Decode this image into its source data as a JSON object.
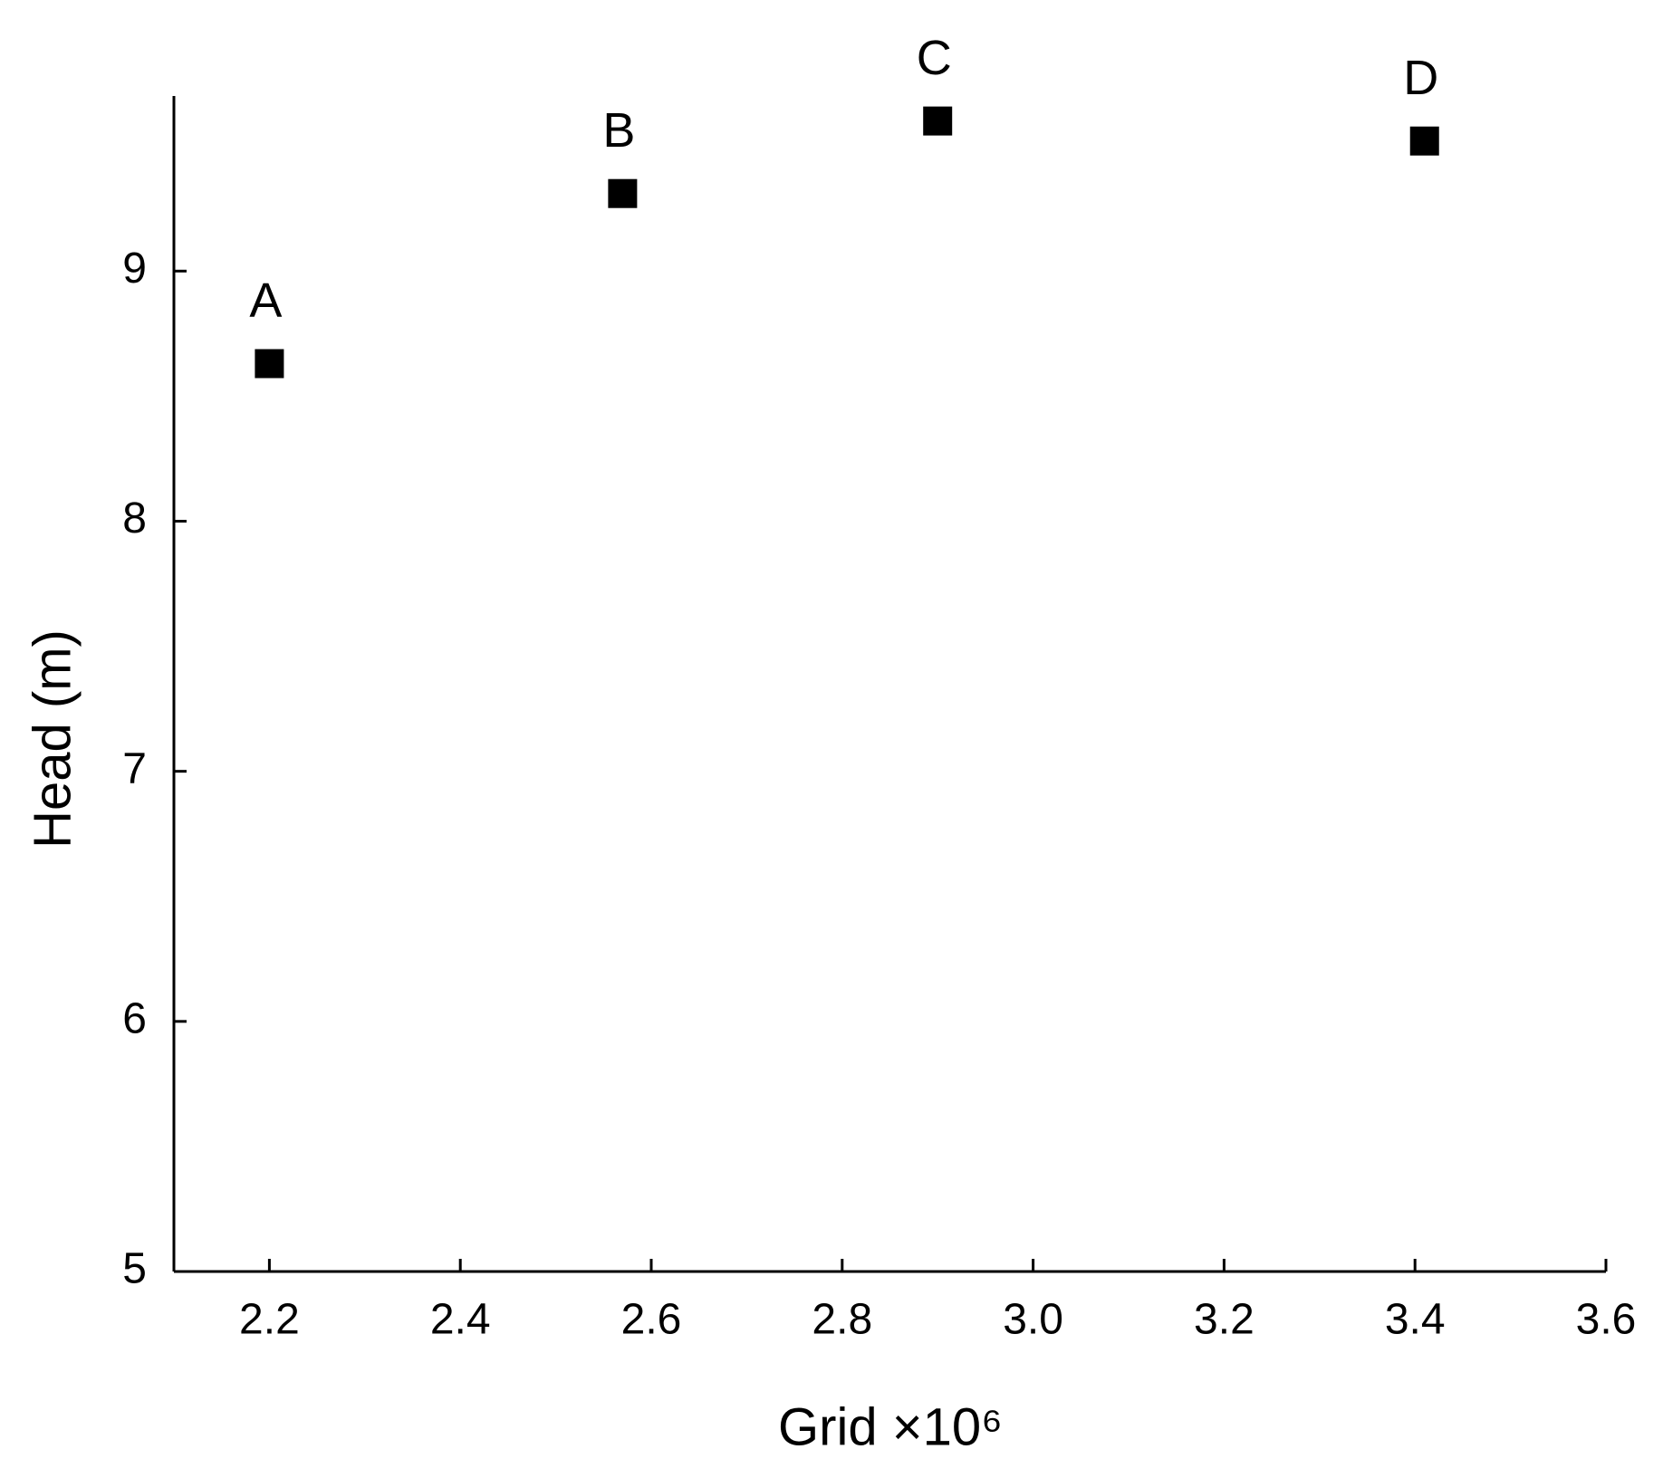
{
  "chart_data": {
    "type": "line",
    "x_label": "Grid ×10⁶",
    "y_label": "Head (m)",
    "x": [
      2.2,
      2.57,
      2.9,
      3.41
    ],
    "values": [
      8.63,
      9.31,
      9.6,
      9.52
    ],
    "point_labels": [
      "A",
      "B",
      "C",
      "D"
    ],
    "line_color": "#808080",
    "marker_color": "#000000",
    "xlim": [
      2.1,
      3.6
    ],
    "xticks": [
      2.2,
      2.4,
      2.6,
      2.8,
      {
        "value": 3.0,
        "label": "3.0"
      },
      3.2,
      3.4,
      3.6
    ],
    "ylim": [
      5,
      9.7
    ],
    "yticks": [
      5,
      6,
      7,
      8,
      9
    ],
    "grid": false
  }
}
